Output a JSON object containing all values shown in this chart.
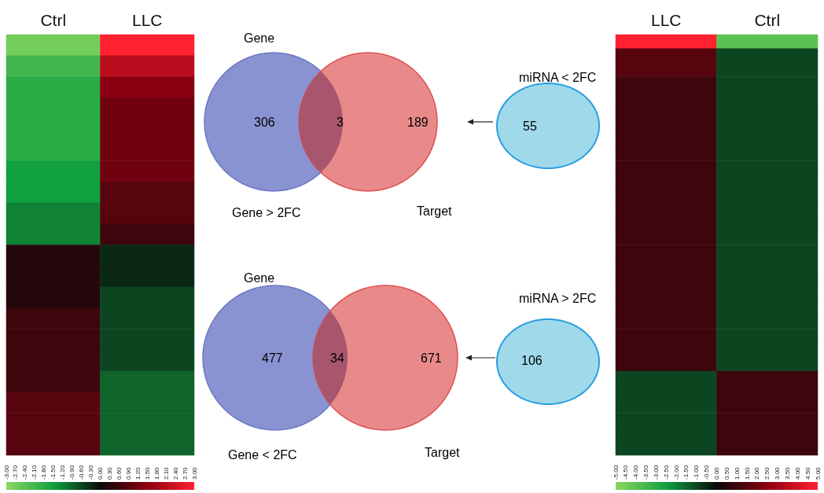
{
  "chart_data": [
    {
      "type": "heatmap",
      "categories": [
        "Ctrl",
        "LLC"
      ],
      "y_categories": [
        null,
        null,
        null,
        null,
        null,
        null,
        null,
        null,
        null,
        null,
        null,
        null,
        null,
        null,
        null,
        null,
        null,
        null,
        null,
        null
      ],
      "cells": [
        [
          -2.7,
          3.0
        ],
        [
          -2.1,
          2.1
        ],
        [
          -1.8,
          1.5
        ],
        [
          -1.8,
          1.2
        ],
        [
          -1.8,
          1.2
        ],
        [
          -1.8,
          1.2
        ],
        [
          -1.5,
          1.2
        ],
        [
          -1.5,
          0.9
        ],
        [
          -1.2,
          0.9
        ],
        [
          -1.2,
          0.6
        ],
        [
          0.3,
          -0.3
        ],
        [
          0.3,
          -0.3
        ],
        [
          0.3,
          -0.6
        ],
        [
          0.6,
          -0.6
        ],
        [
          0.6,
          -0.6
        ],
        [
          0.6,
          -0.6
        ],
        [
          0.6,
          -0.9
        ],
        [
          0.9,
          -0.9
        ],
        [
          0.9,
          -0.9
        ],
        [
          0.9,
          -0.9
        ]
      ],
      "clim": [
        -3,
        3
      ],
      "cticks": [
        {
          "value": -3,
          "label": "-3.00"
        },
        {
          "value": -2.7,
          "label": "-2.70"
        },
        {
          "value": -2.4,
          "label": "-2.40"
        },
        {
          "value": -2.1,
          "label": "-2.10"
        },
        {
          "value": -1.8,
          "label": "-1.80"
        },
        {
          "value": -1.5,
          "label": "-1.50"
        },
        {
          "value": -1.2,
          "label": "-1.20"
        },
        {
          "value": -0.9,
          "label": "-0.90"
        },
        {
          "value": -0.6,
          "label": "-0.60"
        },
        {
          "value": -0.3,
          "label": "-0.30"
        },
        {
          "value": 0,
          "label": "0.00"
        },
        {
          "value": 0.3,
          "label": "0.30"
        },
        {
          "value": 0.6,
          "label": "0.60"
        },
        {
          "value": 0.9,
          "label": "0.90"
        },
        {
          "value": 1.2,
          "label": "1.20"
        },
        {
          "value": 1.5,
          "label": "1.50"
        },
        {
          "value": 1.8,
          "label": "1.80"
        },
        {
          "value": 2.1,
          "label": "2.10"
        },
        {
          "value": 2.4,
          "label": "2.40"
        },
        {
          "value": 2.7,
          "label": "2.70"
        },
        {
          "value": 3,
          "label": "3.00"
        }
      ]
    },
    {
      "type": "other",
      "data_labels": true,
      "categories": [
        "Gene",
        null,
        "Target",
        "miRNA < 2FC"
      ],
      "values": [
        306,
        3,
        189,
        55
      ],
      "colors": [
        "#8a93d2",
        "#a8566e",
        "#e98a8a",
        "#9fd9ea"
      ],
      "annotations": [
        "Gene > 2FC"
      ]
    },
    {
      "type": "other",
      "data_labels": true,
      "categories": [
        "Gene",
        null,
        "Target",
        "miRNA > 2FC"
      ],
      "values": [
        477,
        34,
        671,
        106
      ],
      "colors": [
        "#8a93d2",
        "#a8566e",
        "#e98a8a",
        "#9fd9ea"
      ],
      "annotations": [
        "Gene < 2FC"
      ]
    },
    {
      "type": "heatmap",
      "categories": [
        "LLC",
        "Ctrl"
      ],
      "y_categories": [
        null,
        null,
        null,
        null,
        null,
        null,
        null,
        null,
        null,
        null,
        null,
        null,
        null,
        null,
        null,
        null,
        null,
        null,
        null,
        null,
        null,
        null,
        null,
        null,
        null,
        null,
        null,
        null,
        null,
        null
      ],
      "cells": [
        [
          5.0,
          -4.0
        ],
        [
          1.5,
          -1.0
        ],
        [
          1.5,
          -1.0
        ],
        [
          1.0,
          -1.0
        ],
        [
          1.0,
          -1.0
        ],
        [
          1.0,
          -1.0
        ],
        [
          1.0,
          -1.0
        ],
        [
          1.0,
          -1.0
        ],
        [
          1.0,
          -1.0
        ],
        [
          1.0,
          -1.0
        ],
        [
          1.0,
          -1.0
        ],
        [
          1.0,
          -1.0
        ],
        [
          1.0,
          -1.0
        ],
        [
          1.0,
          -1.0
        ],
        [
          1.0,
          -1.0
        ],
        [
          1.0,
          -1.0
        ],
        [
          1.0,
          -1.0
        ],
        [
          1.0,
          -1.0
        ],
        [
          1.0,
          -1.0
        ],
        [
          1.0,
          -1.0
        ],
        [
          1.0,
          -1.0
        ],
        [
          1.0,
          -1.0
        ],
        [
          1.0,
          -1.0
        ],
        [
          1.0,
          -1.0
        ],
        [
          -1.0,
          1.0
        ],
        [
          -1.0,
          1.0
        ],
        [
          -1.0,
          1.0
        ],
        [
          -1.0,
          1.0
        ],
        [
          -1.0,
          1.0
        ],
        [
          -1.0,
          1.0
        ]
      ],
      "clim": [
        -5,
        5
      ],
      "cticks": [
        {
          "value": -5,
          "label": "-5.00"
        },
        {
          "value": -4.5,
          "label": "-4.50"
        },
        {
          "value": -4,
          "label": "-4.00"
        },
        {
          "value": -3.5,
          "label": "-3.50"
        },
        {
          "value": -3,
          "label": "-3.00"
        },
        {
          "value": -2.5,
          "label": "-2.50"
        },
        {
          "value": -2,
          "label": "-2.00"
        },
        {
          "value": -1.5,
          "label": "-1.50"
        },
        {
          "value": -1,
          "label": "-1.00"
        },
        {
          "value": -0.5,
          "label": "-0.50"
        },
        {
          "value": 0,
          "label": "0.00"
        },
        {
          "value": 0.5,
          "label": "0.50"
        },
        {
          "value": 1,
          "label": "1.00"
        },
        {
          "value": 1.5,
          "label": "1.50"
        },
        {
          "value": 2,
          "label": "2.00"
        },
        {
          "value": 2.5,
          "label": "2.50"
        },
        {
          "value": 3,
          "label": "3.00"
        },
        {
          "value": 3.5,
          "label": "3.50"
        },
        {
          "value": 4,
          "label": "4.00"
        },
        {
          "value": 4.5,
          "label": "4.50"
        },
        {
          "value": 5,
          "label": "5.00"
        }
      ]
    }
  ]
}
